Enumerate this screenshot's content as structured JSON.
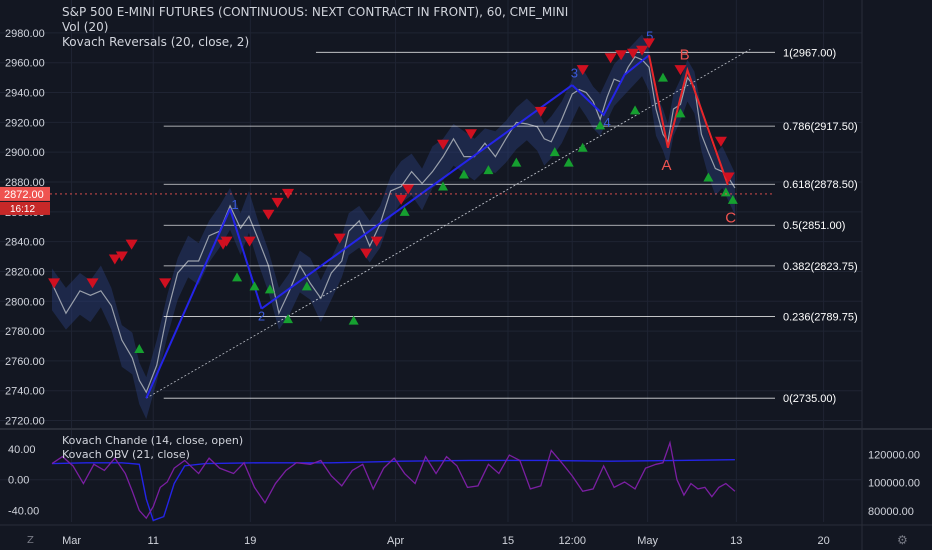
{
  "header": {
    "title": "S&P 500 E-MINI FUTURES (CONTINUOUS: NEXT CONTRACT IN FRONT), 60, CME_MINI",
    "indicator_1": "Vol (20)",
    "indicator_2": "Kovach Reversals (20, close, 2)"
  },
  "subpanel": {
    "indicator_1": "Kovach Chande (14, close, open)",
    "indicator_2": "Kovach OBV (21, close)"
  },
  "price_badge": {
    "price": "2872.00",
    "time": "16:12"
  },
  "buttons": {
    "z": "Z",
    "gear": "⚙"
  },
  "colors": {
    "bg": "#131722",
    "up": "#26a69a",
    "down": "#ef5350",
    "wave_blue": "#2424e8",
    "wave_red": "#e8262a",
    "marker_red": "#d01020",
    "marker_green": "#16a030",
    "grid": "#1f2433",
    "axis_text": "#d1d4dc",
    "purple": "#7b1fa2",
    "fib": "#ffffff"
  },
  "chart_data": [
    {
      "type": "line",
      "title": "S&P 500 E-MINI FUTURES (CONTINUOUS: NEXT CONTRACT IN FRONT), 60, CME_MINI",
      "ylim": [
        2715,
        2990
      ],
      "yticks": [
        2720,
        2740,
        2760,
        2780,
        2800,
        2820,
        2840,
        2860,
        2880,
        2900,
        2920,
        2940,
        2960,
        2980
      ],
      "ytick_labels": [
        "2720.00",
        "2740.00",
        "2760.00",
        "2780.00",
        "2800.00",
        "2820.00",
        "2840.00",
        "2860.00",
        "2880.00",
        "2900.00",
        "2920.00",
        "2940.00",
        "2960.00",
        "2980.00"
      ],
      "xticks": [
        {
          "label": "Mar",
          "x": 0.028
        },
        {
          "label": "11",
          "x": 0.145
        },
        {
          "label": "19",
          "x": 0.284
        },
        {
          "label": "Apr",
          "x": 0.492
        },
        {
          "label": "15",
          "x": 0.653
        },
        {
          "label": "12:00",
          "x": 0.745
        },
        {
          "label": "May",
          "x": 0.853
        },
        {
          "label": "13",
          "x": 0.98
        },
        {
          "label": "20",
          "x": 1.105
        }
      ],
      "xlim": [
        0,
        1.16
      ],
      "price_series": [
        [
          0.0,
          2808
        ],
        [
          0.02,
          2795
        ],
        [
          0.04,
          2805
        ],
        [
          0.055,
          2800
        ],
        [
          0.07,
          2810
        ],
        [
          0.085,
          2795
        ],
        [
          0.1,
          2770
        ],
        [
          0.115,
          2765
        ],
        [
          0.125,
          2745
        ],
        [
          0.135,
          2735
        ],
        [
          0.15,
          2760
        ],
        [
          0.165,
          2790
        ],
        [
          0.18,
          2815
        ],
        [
          0.195,
          2830
        ],
        [
          0.21,
          2825
        ],
        [
          0.225,
          2840
        ],
        [
          0.24,
          2850
        ],
        [
          0.255,
          2862
        ],
        [
          0.27,
          2845
        ],
        [
          0.282,
          2860
        ],
        [
          0.295,
          2840
        ],
        [
          0.31,
          2820
        ],
        [
          0.325,
          2795
        ],
        [
          0.34,
          2805
        ],
        [
          0.355,
          2820
        ],
        [
          0.37,
          2815
        ],
        [
          0.385,
          2800
        ],
        [
          0.4,
          2815
        ],
        [
          0.415,
          2830
        ],
        [
          0.425,
          2845
        ],
        [
          0.44,
          2850
        ],
        [
          0.455,
          2840
        ],
        [
          0.47,
          2850
        ],
        [
          0.485,
          2870
        ],
        [
          0.5,
          2880
        ],
        [
          0.515,
          2885
        ],
        [
          0.53,
          2875
        ],
        [
          0.545,
          2890
        ],
        [
          0.56,
          2895
        ],
        [
          0.575,
          2905
        ],
        [
          0.59,
          2900
        ],
        [
          0.605,
          2895
        ],
        [
          0.62,
          2902
        ],
        [
          0.635,
          2900
        ],
        [
          0.65,
          2907
        ],
        [
          0.665,
          2916
        ],
        [
          0.68,
          2922
        ],
        [
          0.695,
          2915
        ],
        [
          0.705,
          2905
        ],
        [
          0.715,
          2910
        ],
        [
          0.73,
          2920
        ],
        [
          0.745,
          2935
        ],
        [
          0.755,
          2945
        ],
        [
          0.765,
          2938
        ],
        [
          0.775,
          2930
        ],
        [
          0.785,
          2925
        ],
        [
          0.795,
          2935
        ],
        [
          0.805,
          2945
        ],
        [
          0.815,
          2950
        ],
        [
          0.825,
          2955
        ],
        [
          0.835,
          2960
        ],
        [
          0.845,
          2965
        ],
        [
          0.855,
          2955
        ],
        [
          0.865,
          2925
        ],
        [
          0.875,
          2915
        ],
        [
          0.882,
          2905
        ],
        [
          0.89,
          2925
        ],
        [
          0.9,
          2935
        ],
        [
          0.91,
          2948
        ],
        [
          0.92,
          2940
        ],
        [
          0.93,
          2915
        ],
        [
          0.94,
          2898
        ],
        [
          0.95,
          2885
        ],
        [
          0.96,
          2890
        ],
        [
          0.97,
          2880
        ],
        [
          0.978,
          2872
        ]
      ],
      "waves_blue": [
        {
          "label": "",
          "points": [
            [
              0.135,
              2735
            ],
            [
              0.255,
              2862
            ]
          ]
        },
        {
          "label": "",
          "points": [
            [
              0.255,
              2862
            ],
            [
              0.3,
              2795
            ]
          ]
        },
        {
          "label": "",
          "points": [
            [
              0.3,
              2795
            ],
            [
              0.745,
              2945
            ]
          ]
        },
        {
          "label": "",
          "points": [
            [
              0.745,
              2945
            ],
            [
              0.79,
              2925
            ],
            [
              0.82,
              2952
            ],
            [
              0.855,
              2965
            ]
          ]
        }
      ],
      "wave_labels_blue": [
        {
          "text": "1",
          "x": 0.262,
          "y": 2862
        },
        {
          "text": "2",
          "x": 0.3,
          "y": 2787
        },
        {
          "text": "3",
          "x": 0.748,
          "y": 2950
        },
        {
          "text": "4",
          "x": 0.795,
          "y": 2917
        },
        {
          "text": "5",
          "x": 0.856,
          "y": 2975
        }
      ],
      "waves_red": {
        "points": [
          [
            0.855,
            2965
          ],
          [
            0.882,
            2903
          ],
          [
            0.91,
            2955
          ],
          [
            0.968,
            2878
          ]
        ]
      },
      "wave_labels_red": [
        {
          "text": "A",
          "x": 0.88,
          "y": 2888
        },
        {
          "text": "B",
          "x": 0.906,
          "y": 2962
        },
        {
          "text": "C",
          "x": 0.972,
          "y": 2853
        }
      ],
      "trendline": [
        [
          0.135,
          2735
        ],
        [
          1.0,
          2969
        ]
      ],
      "fib_levels": [
        {
          "label": "1(2967.00)",
          "value": 2967.0,
          "x0": 0.378
        },
        {
          "label": "0.786(2917.50)",
          "value": 2917.5,
          "x0": 0.16
        },
        {
          "label": "0.618(2878.50)",
          "value": 2878.5,
          "x0": 0.16
        },
        {
          "label": "0.5(2851.00)",
          "value": 2851.0,
          "x0": 0.16
        },
        {
          "label": "0.382(2823.75)",
          "value": 2823.75,
          "x0": 0.16
        },
        {
          "label": "0.236(2789.75)",
          "value": 2789.75,
          "x0": 0.16
        },
        {
          "label": "0(2735.00)",
          "value": 2735.0,
          "x0": 0.16
        }
      ],
      "markers_red": [
        [
          0.003,
          2812
        ],
        [
          0.058,
          2812
        ],
        [
          0.09,
          2828
        ],
        [
          0.1,
          2830
        ],
        [
          0.114,
          2838
        ],
        [
          0.162,
          2812
        ],
        [
          0.245,
          2838
        ],
        [
          0.25,
          2840
        ],
        [
          0.283,
          2840
        ],
        [
          0.31,
          2858
        ],
        [
          0.323,
          2866
        ],
        [
          0.338,
          2872
        ],
        [
          0.412,
          2842
        ],
        [
          0.45,
          2832
        ],
        [
          0.465,
          2840
        ],
        [
          0.5,
          2868
        ],
        [
          0.51,
          2875
        ],
        [
          0.56,
          2905
        ],
        [
          0.6,
          2912
        ],
        [
          0.7,
          2927
        ],
        [
          0.76,
          2955
        ],
        [
          0.8,
          2963
        ],
        [
          0.815,
          2965
        ],
        [
          0.832,
          2966
        ],
        [
          0.845,
          2968
        ],
        [
          0.855,
          2973
        ],
        [
          0.9,
          2955
        ],
        [
          0.958,
          2907
        ],
        [
          0.969,
          2883
        ]
      ],
      "markers_green": [
        [
          0.125,
          2768
        ],
        [
          0.265,
          2816
        ],
        [
          0.29,
          2810
        ],
        [
          0.312,
          2808
        ],
        [
          0.338,
          2788
        ],
        [
          0.365,
          2810
        ],
        [
          0.432,
          2787
        ],
        [
          0.505,
          2860
        ],
        [
          0.56,
          2877
        ],
        [
          0.59,
          2885
        ],
        [
          0.625,
          2888
        ],
        [
          0.665,
          2893
        ],
        [
          0.72,
          2900
        ],
        [
          0.74,
          2893
        ],
        [
          0.76,
          2903
        ],
        [
          0.785,
          2918
        ],
        [
          0.835,
          2928
        ],
        [
          0.875,
          2950
        ],
        [
          0.9,
          2926
        ],
        [
          0.94,
          2883
        ],
        [
          0.965,
          2873
        ],
        [
          0.975,
          2868
        ]
      ]
    },
    {
      "type": "line",
      "ylim_left": [
        -55,
        62
      ],
      "yticks_left": [
        40,
        0,
        -40
      ],
      "ytick_labels_left": [
        "40.00",
        "0.00",
        "-40.00"
      ],
      "ylim_right": [
        72000,
        136000
      ],
      "yticks_right": [
        120000,
        100000,
        80000
      ],
      "ytick_labels_right": [
        "120000.00",
        "100000.00",
        "80000.00"
      ],
      "chande_blue": [
        [
          0.0,
          21
        ],
        [
          0.05,
          22
        ],
        [
          0.1,
          22
        ],
        [
          0.125,
          20
        ],
        [
          0.135,
          -25
        ],
        [
          0.145,
          -53
        ],
        [
          0.16,
          -48
        ],
        [
          0.175,
          -5
        ],
        [
          0.19,
          18
        ],
        [
          0.22,
          21
        ],
        [
          0.3,
          22
        ],
        [
          0.4,
          22
        ],
        [
          0.5,
          24
        ],
        [
          0.6,
          25
        ],
        [
          0.7,
          25
        ],
        [
          0.8,
          24
        ],
        [
          0.9,
          25
        ],
        [
          0.978,
          26
        ]
      ],
      "obv_purple": [
        [
          0.0,
          21
        ],
        [
          0.015,
          30
        ],
        [
          0.03,
          18
        ],
        [
          0.045,
          -5
        ],
        [
          0.06,
          20
        ],
        [
          0.075,
          12
        ],
        [
          0.09,
          28
        ],
        [
          0.105,
          8
        ],
        [
          0.115,
          -15
        ],
        [
          0.125,
          -40
        ],
        [
          0.135,
          -50
        ],
        [
          0.145,
          -35
        ],
        [
          0.155,
          -10
        ],
        [
          0.165,
          -3
        ],
        [
          0.175,
          15
        ],
        [
          0.19,
          25
        ],
        [
          0.21,
          8
        ],
        [
          0.225,
          28
        ],
        [
          0.24,
          15
        ],
        [
          0.26,
          8
        ],
        [
          0.275,
          22
        ],
        [
          0.29,
          -10
        ],
        [
          0.305,
          -30
        ],
        [
          0.32,
          -5
        ],
        [
          0.335,
          12
        ],
        [
          0.35,
          22
        ],
        [
          0.37,
          20
        ],
        [
          0.385,
          25
        ],
        [
          0.4,
          5
        ],
        [
          0.415,
          -8
        ],
        [
          0.43,
          12
        ],
        [
          0.445,
          20
        ],
        [
          0.46,
          -12
        ],
        [
          0.475,
          15
        ],
        [
          0.49,
          28
        ],
        [
          0.505,
          8
        ],
        [
          0.52,
          -5
        ],
        [
          0.535,
          30
        ],
        [
          0.55,
          8
        ],
        [
          0.565,
          30
        ],
        [
          0.58,
          18
        ],
        [
          0.595,
          -10
        ],
        [
          0.61,
          -8
        ],
        [
          0.625,
          20
        ],
        [
          0.64,
          8
        ],
        [
          0.655,
          32
        ],
        [
          0.67,
          25
        ],
        [
          0.685,
          -12
        ],
        [
          0.7,
          -8
        ],
        [
          0.715,
          38
        ],
        [
          0.73,
          22
        ],
        [
          0.745,
          5
        ],
        [
          0.76,
          -15
        ],
        [
          0.775,
          -12
        ],
        [
          0.79,
          18
        ],
        [
          0.805,
          -10
        ],
        [
          0.82,
          -3
        ],
        [
          0.835,
          -12
        ],
        [
          0.85,
          15
        ],
        [
          0.865,
          20
        ],
        [
          0.875,
          22
        ],
        [
          0.885,
          48
        ],
        [
          0.895,
          0
        ],
        [
          0.905,
          -20
        ],
        [
          0.915,
          -5
        ],
        [
          0.925,
          -12
        ],
        [
          0.935,
          -10
        ],
        [
          0.945,
          -22
        ],
        [
          0.955,
          -10
        ],
        [
          0.965,
          -5
        ],
        [
          0.978,
          -15
        ]
      ]
    }
  ]
}
